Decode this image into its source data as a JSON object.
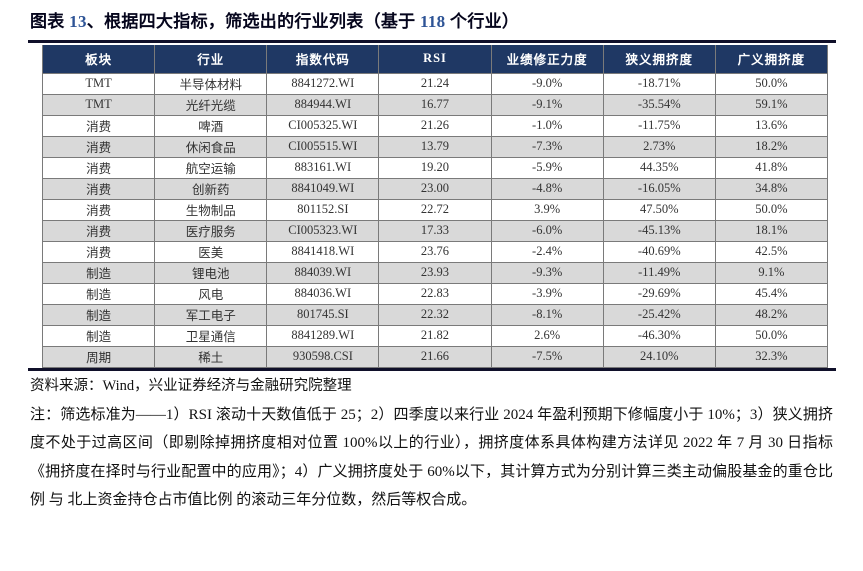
{
  "figure": {
    "title_segments": [
      {
        "text": "图表 ",
        "style": "dark"
      },
      {
        "text": "13",
        "style": "blue"
      },
      {
        "text": "、根据四大指标，筛选出的行业列表（基于 ",
        "style": "dark"
      },
      {
        "text": "118",
        "style": "blue"
      },
      {
        "text": " 个行业）",
        "style": "dark"
      }
    ]
  },
  "table": {
    "columns": [
      "板块",
      "行业",
      "指数代码",
      "RSI",
      "业绩修正力度",
      "狭义拥挤度",
      "广义拥挤度"
    ],
    "rows": [
      {
        "cells": [
          "TMT",
          "半导体材料",
          "8841272.WI",
          "21.24",
          "-9.0%",
          "-18.71%",
          "50.0%"
        ]
      },
      {
        "cells": [
          "TMT",
          "光纤光缆",
          "884944.WI",
          "16.77",
          "-9.1%",
          "-35.54%",
          "59.1%"
        ]
      },
      {
        "cells": [
          "消费",
          "啤酒",
          "CI005325.WI",
          "21.26",
          "-1.0%",
          "-11.75%",
          "13.6%"
        ]
      },
      {
        "cells": [
          "消费",
          "休闲食品",
          "CI005515.WI",
          "13.79",
          "-7.3%",
          "2.73%",
          "18.2%"
        ]
      },
      {
        "cells": [
          "消费",
          "航空运输",
          "883161.WI",
          "19.20",
          "-5.9%",
          "44.35%",
          "41.8%"
        ]
      },
      {
        "cells": [
          "消费",
          "创新药",
          "8841049.WI",
          "23.00",
          "-4.8%",
          "-16.05%",
          "34.8%"
        ]
      },
      {
        "cells": [
          "消费",
          "生物制品",
          "801152.SI",
          "22.72",
          "3.9%",
          "47.50%",
          "50.0%"
        ]
      },
      {
        "cells": [
          "消费",
          "医疗服务",
          "CI005323.WI",
          "17.33",
          "-6.0%",
          "-45.13%",
          "18.1%"
        ]
      },
      {
        "cells": [
          "消费",
          "医美",
          "8841418.WI",
          "23.76",
          "-2.4%",
          "-40.69%",
          "42.5%"
        ]
      },
      {
        "cells": [
          "制造",
          "锂电池",
          "884039.WI",
          "23.93",
          "-9.3%",
          "-11.49%",
          "9.1%"
        ]
      },
      {
        "cells": [
          "制造",
          "风电",
          "884036.WI",
          "22.83",
          "-3.9%",
          "-29.69%",
          "45.4%"
        ]
      },
      {
        "cells": [
          "制造",
          "军工电子",
          "801745.SI",
          "22.32",
          "-8.1%",
          "-25.42%",
          "48.2%"
        ]
      },
      {
        "cells": [
          "制造",
          "卫星通信",
          "8841289.WI",
          "21.82",
          "2.6%",
          "-46.30%",
          "50.0%"
        ]
      },
      {
        "cells": [
          "周期",
          "稀土",
          "930598.CSI",
          "21.66",
          "-7.5%",
          "24.10%",
          "32.3%"
        ]
      }
    ]
  },
  "footer": {
    "source": "资料来源：Wind，兴业证券经济与金融研究院整理",
    "note": "注：筛选标准为——1）RSI 滚动十天数值低于 25；2）四季度以来行业 2024 年盈利预期下修幅度小于 10%；3）狭义拥挤度不处于过高区间（即剔除掉拥挤度相对位置 100%以上的行业），拥挤度体系具体构建方法详见 2022 年 7 月 30 日指标《拥挤度在择时与行业配置中的应用》；4）广义拥挤度处于 60%以下，其计算方式为分别计算三类主动偏股基金的重仓比例 与 北上资金持仓占市值比例 的滚动三年分位数，然后等权合成。"
  },
  "colors": {
    "header_bg": "#1F3864",
    "stripe": "#D9D9D9",
    "number_blue": "#2E5496",
    "rule": "#10102a"
  }
}
